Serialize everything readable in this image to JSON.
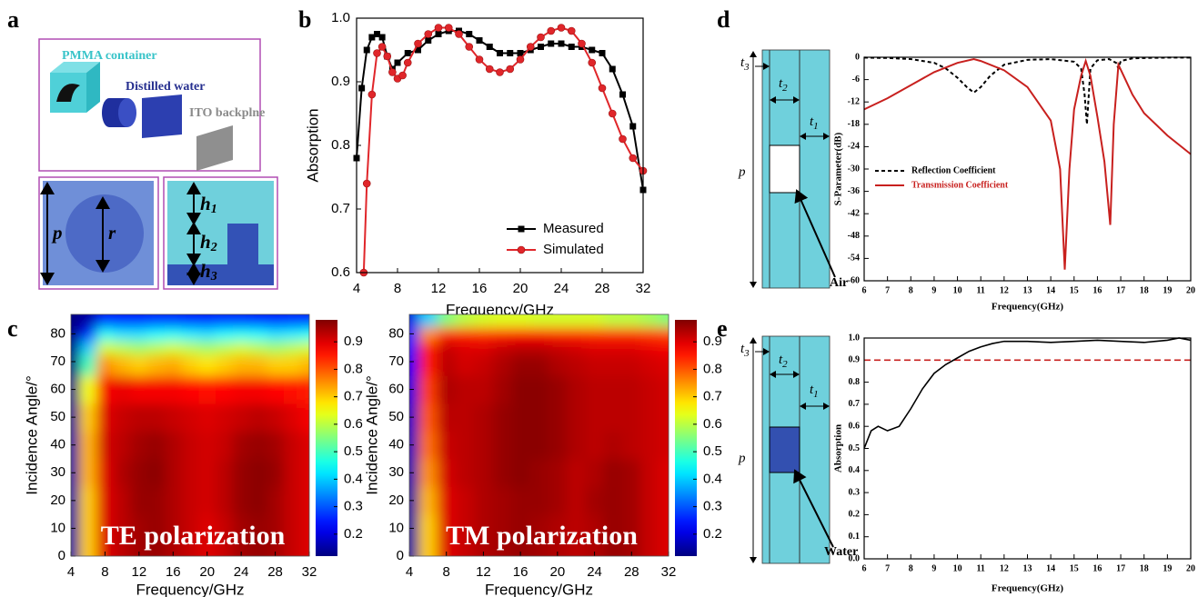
{
  "panels": [
    "a",
    "b",
    "c",
    "d",
    "e"
  ],
  "panel_a": {
    "container": "PMMA container",
    "water": "Distilled water",
    "backplane": "ITO backplne",
    "p": "p",
    "r": "r",
    "h1": {
      "base": "h",
      "sub": "1"
    },
    "h2": {
      "base": "h",
      "sub": "2"
    },
    "h3": {
      "base": "h",
      "sub": "3"
    }
  },
  "panel_d": {
    "t3": {
      "base": "t",
      "sub": "3"
    },
    "t2": {
      "base": "t",
      "sub": "2"
    },
    "t1": {
      "base": "t",
      "sub": "1"
    },
    "p": "p",
    "label": "Air"
  },
  "panel_e": {
    "t3": {
      "base": "t",
      "sub": "3"
    },
    "t2": {
      "base": "t",
      "sub": "2"
    },
    "t1": {
      "base": "t",
      "sub": "1"
    },
    "p": "p",
    "label": "Water"
  },
  "chart_data": [
    {
      "type": "line",
      "xlabel": "Frequency/GHz",
      "ylabel": "Absorption",
      "xlim": [
        4,
        32
      ],
      "xticks": [
        4,
        8,
        12,
        16,
        20,
        24,
        28,
        32
      ],
      "ylim": [
        0.6,
        1
      ],
      "yticks": [
        0.6,
        0.7,
        0.8,
        0.9,
        {
          "value": 1,
          "label": "1.0"
        }
      ],
      "legend": "lower right",
      "series": [
        {
          "name": "Measured",
          "color": "#000000",
          "marker": "square",
          "x": [
            4,
            4.5,
            5,
            5.5,
            6,
            6.5,
            7,
            7.5,
            8,
            9,
            10,
            11,
            12,
            13,
            14,
            15,
            16,
            17,
            18,
            19,
            20,
            21,
            22,
            23,
            24,
            25,
            26,
            27,
            28,
            29,
            30,
            31,
            32
          ],
          "values": [
            0.78,
            0.89,
            0.95,
            0.97,
            0.975,
            0.97,
            0.94,
            0.92,
            0.93,
            0.945,
            0.95,
            0.965,
            0.975,
            0.98,
            0.98,
            0.975,
            0.965,
            0.955,
            0.945,
            0.945,
            0.945,
            0.95,
            0.955,
            0.96,
            0.96,
            0.955,
            0.955,
            0.95,
            0.945,
            0.92,
            0.88,
            0.83,
            0.73
          ]
        },
        {
          "name": "Simulated",
          "color": "#e0262a",
          "marker": "circle",
          "x": [
            4.7,
            5,
            5.5,
            6,
            6.5,
            7,
            7.5,
            8,
            8.5,
            9,
            10,
            11,
            12,
            13,
            14,
            15,
            16,
            17,
            18,
            19,
            20,
            21,
            22,
            23,
            24,
            25,
            26,
            27,
            28,
            29,
            30,
            31,
            32
          ],
          "values": [
            0.6,
            0.74,
            0.88,
            0.945,
            0.955,
            0.94,
            0.915,
            0.905,
            0.91,
            0.93,
            0.96,
            0.975,
            0.985,
            0.985,
            0.975,
            0.955,
            0.935,
            0.92,
            0.915,
            0.92,
            0.935,
            0.955,
            0.97,
            0.98,
            0.985,
            0.98,
            0.96,
            0.93,
            0.89,
            0.85,
            0.81,
            0.78,
            0.76
          ]
        }
      ]
    },
    {
      "type": "heatmap",
      "xlabel": "Frequency/GHz",
      "ylabel": "Incidence Angle/°",
      "annotation": "TE polarization",
      "xlim": [
        4,
        32
      ],
      "xticks": [
        4,
        8,
        12,
        16,
        20,
        24,
        28,
        32
      ],
      "ylim": [
        0,
        87
      ],
      "yticks": [
        0,
        10,
        20,
        30,
        40,
        50,
        60,
        70,
        80
      ],
      "zlim": [
        0.12,
        0.98
      ],
      "cticks": [
        0.2,
        0.3,
        0.4,
        0.5,
        0.6,
        0.7,
        0.8,
        0.9
      ],
      "colormap": "jet",
      "x": [
        4,
        6,
        8,
        10,
        12,
        14,
        16,
        18,
        20,
        22,
        24,
        26,
        28,
        30,
        32
      ],
      "y": [
        0,
        10,
        20,
        30,
        40,
        50,
        60,
        70,
        75,
        80,
        85
      ],
      "z": [
        [
          0.15,
          0.7,
          0.9,
          0.93,
          0.95,
          0.96,
          0.94,
          0.92,
          0.9,
          0.92,
          0.95,
          0.96,
          0.95,
          0.92,
          0.9
        ],
        [
          0.15,
          0.7,
          0.9,
          0.93,
          0.95,
          0.96,
          0.94,
          0.92,
          0.9,
          0.92,
          0.95,
          0.96,
          0.95,
          0.92,
          0.9
        ],
        [
          0.15,
          0.7,
          0.9,
          0.93,
          0.96,
          0.96,
          0.94,
          0.92,
          0.91,
          0.93,
          0.96,
          0.97,
          0.95,
          0.92,
          0.9
        ],
        [
          0.15,
          0.72,
          0.9,
          0.94,
          0.96,
          0.97,
          0.94,
          0.92,
          0.91,
          0.93,
          0.96,
          0.97,
          0.96,
          0.92,
          0.9
        ],
        [
          0.15,
          0.72,
          0.91,
          0.93,
          0.95,
          0.96,
          0.94,
          0.92,
          0.91,
          0.92,
          0.95,
          0.96,
          0.95,
          0.92,
          0.9
        ],
        [
          0.14,
          0.7,
          0.9,
          0.92,
          0.93,
          0.93,
          0.92,
          0.91,
          0.9,
          0.91,
          0.92,
          0.93,
          0.92,
          0.9,
          0.88
        ],
        [
          0.13,
          0.65,
          0.88,
          0.89,
          0.88,
          0.88,
          0.88,
          0.87,
          0.86,
          0.87,
          0.88,
          0.88,
          0.87,
          0.86,
          0.85
        ],
        [
          0.12,
          0.5,
          0.75,
          0.72,
          0.7,
          0.72,
          0.73,
          0.7,
          0.68,
          0.7,
          0.72,
          0.72,
          0.7,
          0.7,
          0.72
        ],
        [
          0.12,
          0.4,
          0.62,
          0.6,
          0.58,
          0.6,
          0.62,
          0.6,
          0.58,
          0.6,
          0.62,
          0.6,
          0.58,
          0.6,
          0.62
        ],
        [
          0.12,
          0.25,
          0.45,
          0.42,
          0.42,
          0.44,
          0.45,
          0.43,
          0.42,
          0.44,
          0.45,
          0.44,
          0.42,
          0.43,
          0.45
        ],
        [
          0.12,
          0.15,
          0.25,
          0.25,
          0.25,
          0.26,
          0.26,
          0.25,
          0.25,
          0.26,
          0.26,
          0.25,
          0.25,
          0.26,
          0.26
        ]
      ]
    },
    {
      "type": "heatmap",
      "xlabel": "Frequency/GHz",
      "ylabel": "Incidence Angle/°",
      "annotation": "TM polarization",
      "xlim": [
        4,
        32
      ],
      "xticks": [
        4,
        8,
        12,
        16,
        20,
        24,
        28,
        32
      ],
      "ylim": [
        0,
        87
      ],
      "yticks": [
        0,
        10,
        20,
        30,
        40,
        50,
        60,
        70,
        80
      ],
      "zlim": [
        0.12,
        0.98
      ],
      "cticks": [
        0.2,
        0.3,
        0.4,
        0.5,
        0.6,
        0.7,
        0.8,
        0.9
      ],
      "colormap": "jet",
      "x": [
        4,
        6,
        8,
        10,
        12,
        14,
        16,
        18,
        20,
        22,
        24,
        26,
        28,
        30,
        32
      ],
      "y": [
        0,
        10,
        20,
        30,
        40,
        50,
        60,
        70,
        75,
        80,
        85
      ],
      "z": [
        [
          0.15,
          0.7,
          0.9,
          0.92,
          0.94,
          0.95,
          0.96,
          0.95,
          0.94,
          0.93,
          0.94,
          0.96,
          0.95,
          0.92,
          0.9
        ],
        [
          0.15,
          0.7,
          0.9,
          0.92,
          0.94,
          0.95,
          0.96,
          0.95,
          0.94,
          0.93,
          0.94,
          0.96,
          0.95,
          0.92,
          0.9
        ],
        [
          0.15,
          0.72,
          0.9,
          0.92,
          0.94,
          0.95,
          0.96,
          0.96,
          0.95,
          0.93,
          0.95,
          0.96,
          0.95,
          0.92,
          0.9
        ],
        [
          0.16,
          0.75,
          0.91,
          0.93,
          0.94,
          0.96,
          0.97,
          0.96,
          0.95,
          0.93,
          0.94,
          0.96,
          0.95,
          0.92,
          0.9
        ],
        [
          0.17,
          0.78,
          0.92,
          0.93,
          0.94,
          0.96,
          0.97,
          0.97,
          0.96,
          0.94,
          0.93,
          0.94,
          0.93,
          0.92,
          0.91
        ],
        [
          0.18,
          0.8,
          0.93,
          0.93,
          0.94,
          0.96,
          0.97,
          0.97,
          0.96,
          0.94,
          0.93,
          0.93,
          0.93,
          0.92,
          0.91
        ],
        [
          0.2,
          0.82,
          0.94,
          0.93,
          0.93,
          0.95,
          0.97,
          0.97,
          0.96,
          0.94,
          0.93,
          0.93,
          0.93,
          0.92,
          0.91
        ],
        [
          0.22,
          0.85,
          0.93,
          0.91,
          0.92,
          0.94,
          0.96,
          0.96,
          0.94,
          0.93,
          0.92,
          0.92,
          0.92,
          0.91,
          0.9
        ],
        [
          0.25,
          0.85,
          0.92,
          0.9,
          0.9,
          0.92,
          0.93,
          0.93,
          0.92,
          0.91,
          0.9,
          0.9,
          0.9,
          0.89,
          0.88
        ],
        [
          0.25,
          0.75,
          0.85,
          0.85,
          0.84,
          0.85,
          0.86,
          0.86,
          0.85,
          0.85,
          0.84,
          0.84,
          0.84,
          0.83,
          0.82
        ],
        [
          0.2,
          0.4,
          0.55,
          0.6,
          0.62,
          0.63,
          0.63,
          0.62,
          0.62,
          0.62,
          0.62,
          0.6,
          0.6,
          0.58,
          0.55
        ]
      ]
    },
    {
      "type": "line",
      "xlabel": "Frequency(GHz)",
      "ylabel": "S-Parameter(dB)",
      "xlim": [
        6,
        20
      ],
      "xticks": [
        6,
        7,
        8,
        9,
        10,
        11,
        12,
        13,
        14,
        15,
        16,
        17,
        18,
        19,
        20
      ],
      "ylim": [
        -60,
        0
      ],
      "yticks": [
        0,
        -6,
        -12,
        -18,
        -24,
        -30,
        -36,
        -42,
        -48,
        -54,
        -60
      ],
      "legend": "center left",
      "series": [
        {
          "name": "Reflection Coefficient",
          "color": "#000000",
          "linestyle": "dashed",
          "x": [
            6,
            7,
            8,
            9,
            9.5,
            10,
            10.4,
            10.7,
            11,
            11.4,
            12,
            13,
            14,
            15,
            15.3,
            15.45,
            15.55,
            15.7,
            16,
            16.5,
            16.8,
            16.9,
            17,
            17.5,
            18,
            19,
            20
          ],
          "values": [
            -0.1,
            -0.2,
            -0.5,
            -1.5,
            -3,
            -5.5,
            -8,
            -9.5,
            -8,
            -5,
            -2,
            -0.7,
            -0.5,
            -1.2,
            -3,
            -10,
            -18,
            -3,
            -0.8,
            -0.5,
            -1.5,
            -3,
            -1,
            -0.3,
            -0.2,
            -0.1,
            -0.1
          ]
        },
        {
          "name": "Transmission Coefficient",
          "color": "#c8201e",
          "linestyle": "solid",
          "x": [
            6,
            7,
            8,
            9,
            10,
            10.7,
            11,
            12,
            13,
            14,
            14.4,
            14.6,
            14.8,
            15,
            15.3,
            15.5,
            15.7,
            16,
            16.3,
            16.55,
            16.7,
            16.9,
            17.2,
            17.5,
            18,
            19,
            20
          ],
          "values": [
            -14,
            -11,
            -7.5,
            -4,
            -1.5,
            -0.5,
            -1,
            -3.5,
            -8,
            -17,
            -30,
            -57,
            -30,
            -14,
            -5,
            -1,
            -5,
            -16,
            -28,
            -45,
            -18,
            -2,
            -6,
            -10,
            -15,
            -21,
            -26
          ]
        }
      ]
    },
    {
      "type": "line",
      "xlabel": "Frequency(GHz)",
      "ylabel": "Absorption",
      "xlim": [
        6,
        20
      ],
      "xticks": [
        6,
        7,
        8,
        9,
        10,
        11,
        12,
        13,
        14,
        15,
        16,
        17,
        18,
        19,
        20
      ],
      "ylim": [
        0,
        1
      ],
      "yticks": [
        {
          "value": 0,
          "label": "0.0"
        },
        0.1,
        0.2,
        0.3,
        0.4,
        0.5,
        0.6,
        0.7,
        0.8,
        0.9,
        {
          "value": 1,
          "label": "1.0"
        }
      ],
      "hline": 0.9,
      "hline_color": "#c8201e",
      "series": [
        {
          "color": "#000000",
          "linestyle": "solid",
          "x": [
            6,
            6.3,
            6.6,
            7,
            7.5,
            8,
            8.5,
            9,
            9.5,
            10,
            10.5,
            11,
            11.5,
            12,
            13,
            14,
            15,
            16,
            17,
            18,
            19,
            19.5,
            20
          ],
          "values": [
            0.5,
            0.58,
            0.6,
            0.58,
            0.6,
            0.68,
            0.77,
            0.84,
            0.88,
            0.91,
            0.94,
            0.96,
            0.975,
            0.985,
            0.985,
            0.98,
            0.985,
            0.99,
            0.985,
            0.98,
            0.99,
            1,
            0.99
          ]
        }
      ]
    }
  ]
}
